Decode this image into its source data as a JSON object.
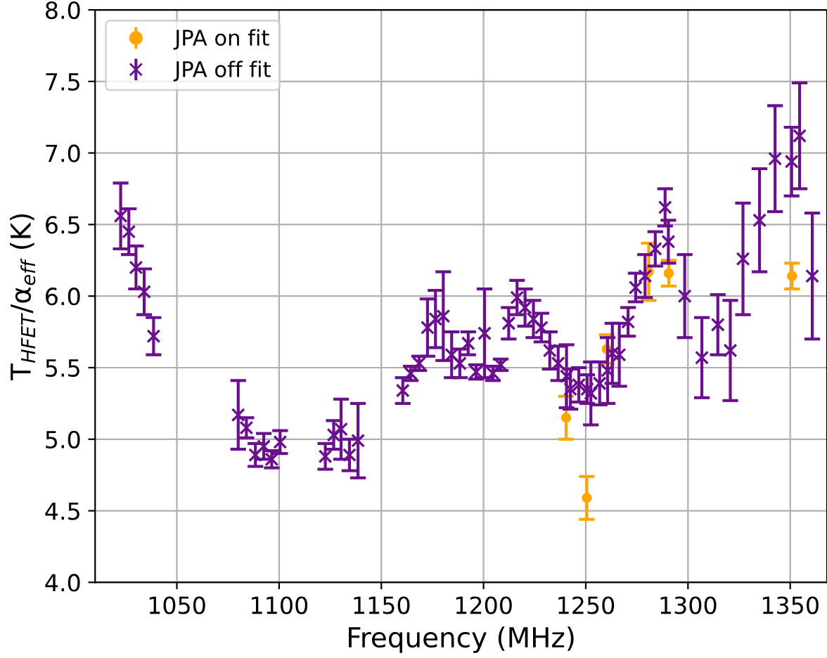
{
  "chart_data": {
    "type": "scatter",
    "xlabel": "Frequency (MHz)",
    "ylabel": "T$_{HFET}$/α$_{eff}$ (K)",
    "xlim": [
      1010,
      1368
    ],
    "ylim": [
      4.0,
      8.0
    ],
    "xticks": [
      1050,
      1100,
      1150,
      1200,
      1250,
      1300,
      1350
    ],
    "yticks": [
      {
        "value": 4.0,
        "label": "4.0"
      },
      {
        "value": 4.5,
        "label": "4.5"
      },
      {
        "value": 5.0,
        "label": "5.0"
      },
      {
        "value": 5.5,
        "label": "5.5"
      },
      {
        "value": 6.0,
        "label": "6.0"
      },
      {
        "value": 6.5,
        "label": "6.5"
      },
      {
        "value": 7.0,
        "label": "7.0"
      },
      {
        "value": 7.5,
        "label": "7.5"
      },
      {
        "value": 8.0,
        "label": "8.0"
      }
    ],
    "grid": true,
    "legend": "top left",
    "series": [
      {
        "name": "JPA on fit",
        "color": "#ffa500",
        "marker": "circle",
        "x": [
          1240.4,
          1250.5,
          1260.3,
          1280.8,
          1290.6,
          1350.9
        ],
        "values": [
          5.15,
          4.59,
          5.63,
          6.17,
          6.16,
          6.14
        ],
        "errors": [
          0.15,
          0.15,
          0.1,
          0.2,
          0.09,
          0.09
        ]
      },
      {
        "name": "JPA off fit",
        "color": "#6a0f8e",
        "marker": "cross",
        "x": [
          1022.5,
          1026.5,
          1030,
          1034,
          1038.6,
          1080,
          1084,
          1088.4,
          1092.5,
          1096.4,
          1100.5,
          1122.6,
          1126.7,
          1130.3,
          1134.4,
          1138.6,
          1160.5,
          1164.4,
          1168.5,
          1172.6,
          1176.5,
          1180.3,
          1184.4,
          1188.4,
          1192.5,
          1196.4,
          1200.5,
          1204.6,
          1208.4,
          1212.3,
          1216.4,
          1220.3,
          1224.4,
          1228.3,
          1232.4,
          1236.5,
          1240.6,
          1242.5,
          1246.6,
          1250.7,
          1252.5,
          1256.8,
          1260.7,
          1263,
          1266.4,
          1270.7,
          1274.4,
          1279,
          1284,
          1288.8,
          1290.4,
          1298.4,
          1306.8,
          1314.6,
          1320.7,
          1326.9,
          1335,
          1342.6,
          1350.7,
          1354.6,
          1360.8
        ],
        "values": [
          6.56,
          6.45,
          6.2,
          6.03,
          5.72,
          5.17,
          5.08,
          4.89,
          4.95,
          4.86,
          4.98,
          4.88,
          5.03,
          5.07,
          4.89,
          4.99,
          5.34,
          5.46,
          5.53,
          5.78,
          5.84,
          5.86,
          5.59,
          5.53,
          5.67,
          5.47,
          5.74,
          5.46,
          5.52,
          5.81,
          5.99,
          5.92,
          5.84,
          5.78,
          5.62,
          5.53,
          5.44,
          5.35,
          5.38,
          5.35,
          5.32,
          5.39,
          5.48,
          5.6,
          5.59,
          5.82,
          6.06,
          6.14,
          6.33,
          6.62,
          6.38,
          6.0,
          5.57,
          5.8,
          5.62,
          6.26,
          6.53,
          6.96,
          6.94,
          7.12,
          6.14
        ],
        "errors": [
          0.23,
          0.16,
          0.15,
          0.16,
          0.13,
          0.24,
          0.07,
          0.08,
          0.09,
          0.06,
          0.08,
          0.09,
          0.1,
          0.21,
          0.11,
          0.26,
          0.09,
          0.05,
          0.05,
          0.2,
          0.2,
          0.31,
          0.16,
          0.1,
          0.08,
          0.05,
          0.31,
          0.05,
          0.04,
          0.11,
          0.12,
          0.13,
          0.13,
          0.1,
          0.13,
          0.12,
          0.22,
          0.14,
          0.12,
          0.1,
          0.22,
          0.15,
          0.23,
          0.21,
          0.22,
          0.1,
          0.1,
          0.15,
          0.12,
          0.13,
          0.15,
          0.29,
          0.28,
          0.21,
          0.35,
          0.39,
          0.36,
          0.37,
          0.24,
          0.37,
          0.44
        ]
      }
    ]
  }
}
